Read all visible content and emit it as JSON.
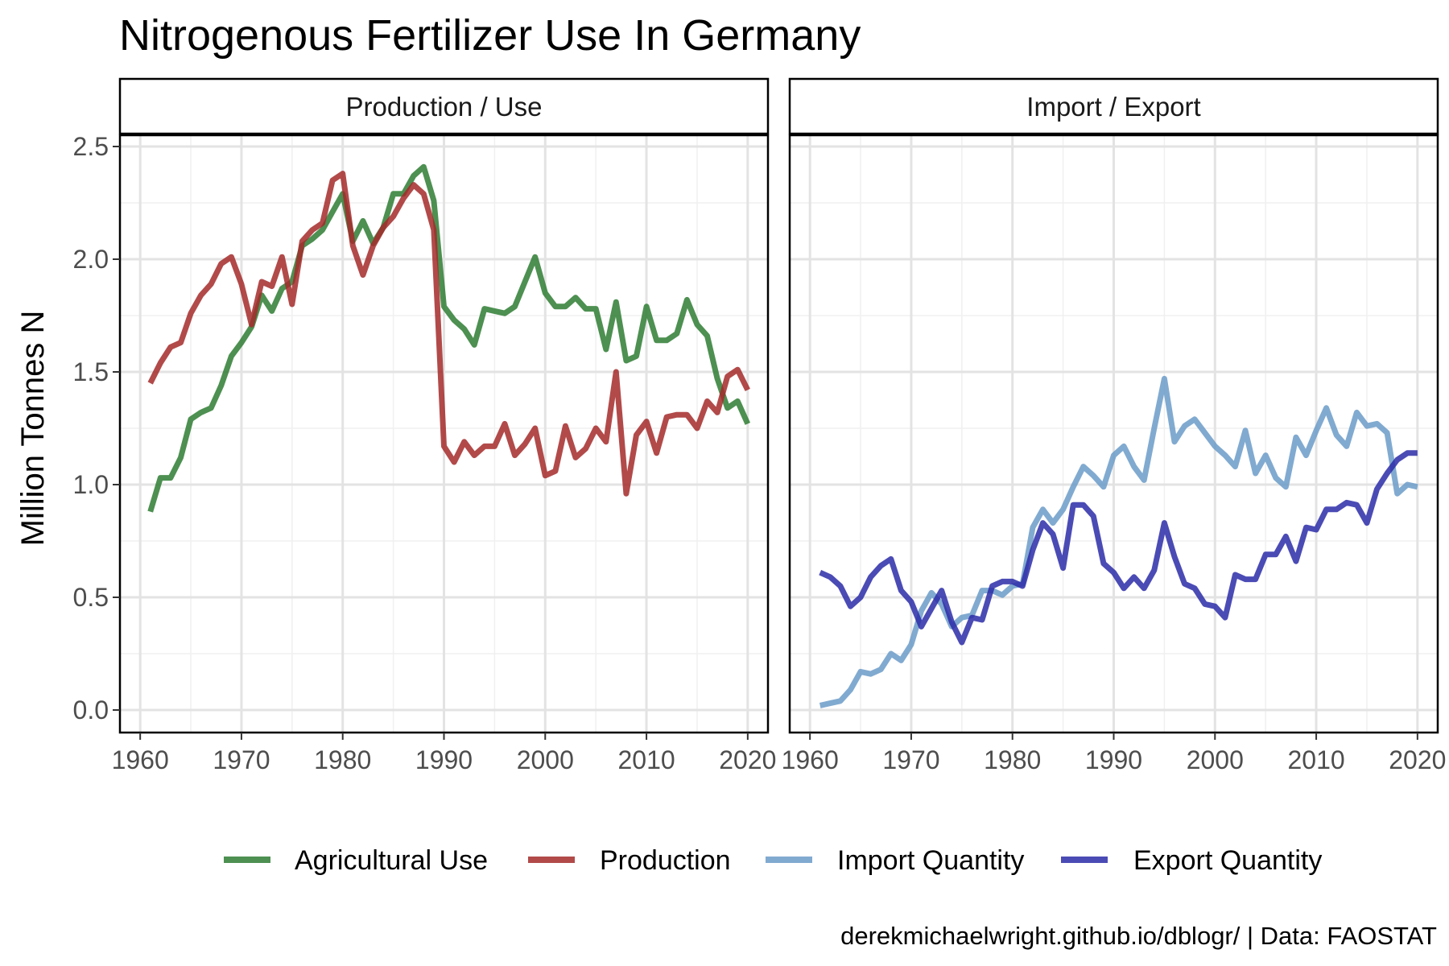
{
  "chart_data": {
    "type": "line",
    "title": "Nitrogenous Fertilizer Use In Germany",
    "ylabel": "Million Tonnes N",
    "xlabel": "",
    "caption": "derekmichaelwright.github.io/dblogr/ | Data: FAOSTAT",
    "xlim": [
      1958,
      2022
    ],
    "ylim": [
      -0.1,
      2.55
    ],
    "x_ticks": [
      1960,
      1970,
      1980,
      1990,
      2000,
      2010,
      2020
    ],
    "y_ticks": [
      0.0,
      0.5,
      1.0,
      1.5,
      2.0,
      2.5
    ],
    "y_tick_labels": [
      "0.0",
      "0.5",
      "1.0",
      "1.5",
      "2.0",
      "2.5"
    ],
    "grid": true,
    "legend_position": "bottom",
    "legend": [
      {
        "name": "Agricultural Use",
        "color": "#2e7d32"
      },
      {
        "name": "Production",
        "color": "#a52a2a"
      },
      {
        "name": "Import Quantity",
        "color": "#6b9bc8"
      },
      {
        "name": "Export Quantity",
        "color": "#2b2ba8"
      }
    ],
    "panels": [
      {
        "strip": "Production / Use",
        "series": [
          {
            "name": "Agricultural Use",
            "color": "#2e7d32",
            "x": [
              1961,
              1962,
              1963,
              1964,
              1965,
              1966,
              1967,
              1968,
              1969,
              1970,
              1971,
              1972,
              1973,
              1974,
              1975,
              1976,
              1977,
              1978,
              1979,
              1980,
              1981,
              1982,
              1983,
              1984,
              1985,
              1986,
              1987,
              1988,
              1989,
              1990,
              1991,
              1992,
              1993,
              1994,
              1995,
              1996,
              1997,
              1998,
              1999,
              2000,
              2001,
              2002,
              2003,
              2004,
              2005,
              2006,
              2007,
              2008,
              2009,
              2010,
              2011,
              2012,
              2013,
              2014,
              2015,
              2016,
              2017,
              2018,
              2019,
              2020
            ],
            "y": [
              0.88,
              1.03,
              1.03,
              1.12,
              1.29,
              1.32,
              1.34,
              1.44,
              1.57,
              1.63,
              1.7,
              1.84,
              1.77,
              1.87,
              1.9,
              2.06,
              2.09,
              2.13,
              2.21,
              2.29,
              2.08,
              2.17,
              2.07,
              2.14,
              2.29,
              2.29,
              2.37,
              2.41,
              2.26,
              1.79,
              1.73,
              1.69,
              1.62,
              1.78,
              1.77,
              1.76,
              1.79,
              1.9,
              2.01,
              1.85,
              1.79,
              1.79,
              1.83,
              1.78,
              1.78,
              1.6,
              1.81,
              1.55,
              1.57,
              1.79,
              1.64,
              1.64,
              1.67,
              1.82,
              1.71,
              1.66,
              1.47,
              1.34,
              1.37,
              1.27
            ]
          },
          {
            "name": "Production",
            "color": "#a52a2a",
            "x": [
              1961,
              1962,
              1963,
              1964,
              1965,
              1966,
              1967,
              1968,
              1969,
              1970,
              1971,
              1972,
              1973,
              1974,
              1975,
              1976,
              1977,
              1978,
              1979,
              1980,
              1981,
              1982,
              1983,
              1984,
              1985,
              1986,
              1987,
              1988,
              1989,
              1990,
              1991,
              1992,
              1993,
              1994,
              1995,
              1996,
              1997,
              1998,
              1999,
              2000,
              2001,
              2002,
              2003,
              2004,
              2005,
              2006,
              2007,
              2008,
              2009,
              2010,
              2011,
              2012,
              2013,
              2014,
              2015,
              2016,
              2017,
              2018,
              2019,
              2020
            ],
            "y": [
              1.45,
              1.54,
              1.61,
              1.63,
              1.76,
              1.84,
              1.89,
              1.98,
              2.01,
              1.89,
              1.71,
              1.9,
              1.88,
              2.01,
              1.8,
              2.08,
              2.13,
              2.16,
              2.35,
              2.38,
              2.06,
              1.93,
              2.06,
              2.14,
              2.19,
              2.27,
              2.33,
              2.29,
              2.13,
              1.17,
              1.1,
              1.19,
              1.13,
              1.17,
              1.17,
              1.27,
              1.13,
              1.18,
              1.25,
              1.04,
              1.06,
              1.26,
              1.12,
              1.16,
              1.25,
              1.19,
              1.5,
              0.96,
              1.22,
              1.28,
              1.14,
              1.3,
              1.31,
              1.31,
              1.25,
              1.37,
              1.32,
              1.48,
              1.51,
              1.42
            ]
          }
        ]
      },
      {
        "strip": "Import / Export",
        "series": [
          {
            "name": "Import Quantity",
            "color": "#6b9bc8",
            "x": [
              1961,
              1962,
              1963,
              1964,
              1965,
              1966,
              1967,
              1968,
              1969,
              1970,
              1971,
              1972,
              1973,
              1974,
              1975,
              1976,
              1977,
              1978,
              1979,
              1980,
              1981,
              1982,
              1983,
              1984,
              1985,
              1986,
              1987,
              1988,
              1989,
              1990,
              1991,
              1992,
              1993,
              1994,
              1995,
              1996,
              1997,
              1998,
              1999,
              2000,
              2001,
              2002,
              2003,
              2004,
              2005,
              2006,
              2007,
              2008,
              2009,
              2010,
              2011,
              2012,
              2013,
              2014,
              2015,
              2016,
              2017,
              2018,
              2019,
              2020
            ],
            "y": [
              0.02,
              0.03,
              0.04,
              0.09,
              0.17,
              0.16,
              0.18,
              0.25,
              0.22,
              0.29,
              0.44,
              0.52,
              0.47,
              0.37,
              0.41,
              0.42,
              0.53,
              0.53,
              0.51,
              0.55,
              0.56,
              0.81,
              0.89,
              0.83,
              0.89,
              0.99,
              1.08,
              1.04,
              0.99,
              1.13,
              1.17,
              1.08,
              1.02,
              1.25,
              1.47,
              1.19,
              1.26,
              1.29,
              1.23,
              1.17,
              1.13,
              1.08,
              1.24,
              1.05,
              1.13,
              1.03,
              0.99,
              1.21,
              1.13,
              1.24,
              1.34,
              1.22,
              1.17,
              1.32,
              1.26,
              1.27,
              1.23,
              0.96,
              1.0,
              0.99
            ]
          },
          {
            "name": "Export Quantity",
            "color": "#2b2ba8",
            "x": [
              1961,
              1962,
              1963,
              1964,
              1965,
              1966,
              1967,
              1968,
              1969,
              1970,
              1971,
              1972,
              1973,
              1974,
              1975,
              1976,
              1977,
              1978,
              1979,
              1980,
              1981,
              1982,
              1983,
              1984,
              1985,
              1986,
              1987,
              1988,
              1989,
              1990,
              1991,
              1992,
              1993,
              1994,
              1995,
              1996,
              1997,
              1998,
              1999,
              2000,
              2001,
              2002,
              2003,
              2004,
              2005,
              2006,
              2007,
              2008,
              2009,
              2010,
              2011,
              2012,
              2013,
              2014,
              2015,
              2016,
              2017,
              2018,
              2019,
              2020
            ],
            "y": [
              0.61,
              0.59,
              0.55,
              0.46,
              0.5,
              0.59,
              0.64,
              0.67,
              0.53,
              0.48,
              0.37,
              0.45,
              0.53,
              0.39,
              0.3,
              0.41,
              0.4,
              0.55,
              0.57,
              0.57,
              0.55,
              0.71,
              0.83,
              0.78,
              0.63,
              0.91,
              0.91,
              0.86,
              0.65,
              0.61,
              0.54,
              0.59,
              0.54,
              0.62,
              0.83,
              0.68,
              0.56,
              0.54,
              0.47,
              0.46,
              0.41,
              0.6,
              0.58,
              0.58,
              0.69,
              0.69,
              0.77,
              0.66,
              0.81,
              0.8,
              0.89,
              0.89,
              0.92,
              0.91,
              0.83,
              0.98,
              1.05,
              1.11,
              1.14,
              1.14
            ]
          }
        ]
      }
    ]
  }
}
